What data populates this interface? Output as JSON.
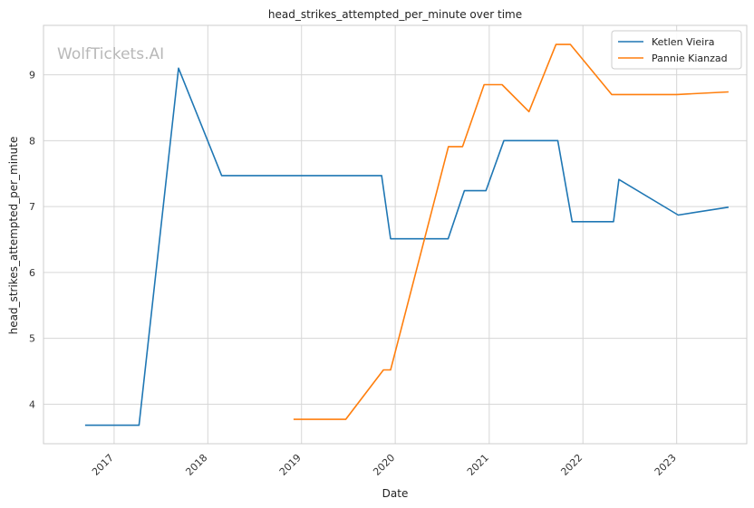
{
  "chart_data": {
    "type": "line",
    "title": "head_strikes_attempted_per_minute over time",
    "xlabel": "Date",
    "ylabel": "head_strikes_attempted_per_minute",
    "watermark": "WolfTickets.AI",
    "x_type": "date",
    "xlim": [
      "2016-04-01",
      "2023-10-01"
    ],
    "ylim": [
      3.4,
      9.75
    ],
    "x_ticks": [
      {
        "label": "2017",
        "date": "2017-01-01"
      },
      {
        "label": "2018",
        "date": "2018-01-01"
      },
      {
        "label": "2019",
        "date": "2019-01-01"
      },
      {
        "label": "2020",
        "date": "2020-01-01"
      },
      {
        "label": "2021",
        "date": "2021-01-01"
      },
      {
        "label": "2022",
        "date": "2022-01-01"
      },
      {
        "label": "2023",
        "date": "2023-01-01"
      }
    ],
    "y_ticks": [
      4,
      5,
      6,
      7,
      8,
      9
    ],
    "grid": true,
    "legend_position": "top-right",
    "series": [
      {
        "name": "Ketlen Vieira",
        "color": "#1f77b4",
        "points": [
          {
            "x": "2016-09-10",
            "y": 3.68
          },
          {
            "x": "2017-04-08",
            "y": 3.68
          },
          {
            "x": "2017-09-09",
            "y": 9.1
          },
          {
            "x": "2018-02-24",
            "y": 7.47
          },
          {
            "x": "2019-11-09",
            "y": 7.47
          },
          {
            "x": "2019-12-14",
            "y": 6.51
          },
          {
            "x": "2020-07-25",
            "y": 6.51
          },
          {
            "x": "2020-09-26",
            "y": 7.24
          },
          {
            "x": "2020-12-19",
            "y": 7.24
          },
          {
            "x": "2021-02-27",
            "y": 8.0
          },
          {
            "x": "2021-09-25",
            "y": 8.0
          },
          {
            "x": "2021-11-20",
            "y": 6.77
          },
          {
            "x": "2022-04-30",
            "y": 6.77
          },
          {
            "x": "2022-05-21",
            "y": 7.41
          },
          {
            "x": "2023-01-07",
            "y": 6.87
          },
          {
            "x": "2023-07-22",
            "y": 6.99
          }
        ]
      },
      {
        "name": "Pannie Kianzad",
        "color": "#ff7f0e",
        "points": [
          {
            "x": "2018-12-01",
            "y": 3.77
          },
          {
            "x": "2019-06-22",
            "y": 3.77
          },
          {
            "x": "2019-11-16",
            "y": 4.52
          },
          {
            "x": "2019-12-14",
            "y": 4.52
          },
          {
            "x": "2020-07-26",
            "y": 7.91
          },
          {
            "x": "2020-09-19",
            "y": 7.91
          },
          {
            "x": "2020-12-12",
            "y": 8.85
          },
          {
            "x": "2021-02-20",
            "y": 8.85
          },
          {
            "x": "2021-06-05",
            "y": 8.44
          },
          {
            "x": "2021-09-18",
            "y": 9.46
          },
          {
            "x": "2021-11-13",
            "y": 9.46
          },
          {
            "x": "2022-04-23",
            "y": 8.7
          },
          {
            "x": "2023-01-01",
            "y": 8.7
          },
          {
            "x": "2023-07-22",
            "y": 8.74
          }
        ]
      }
    ]
  }
}
